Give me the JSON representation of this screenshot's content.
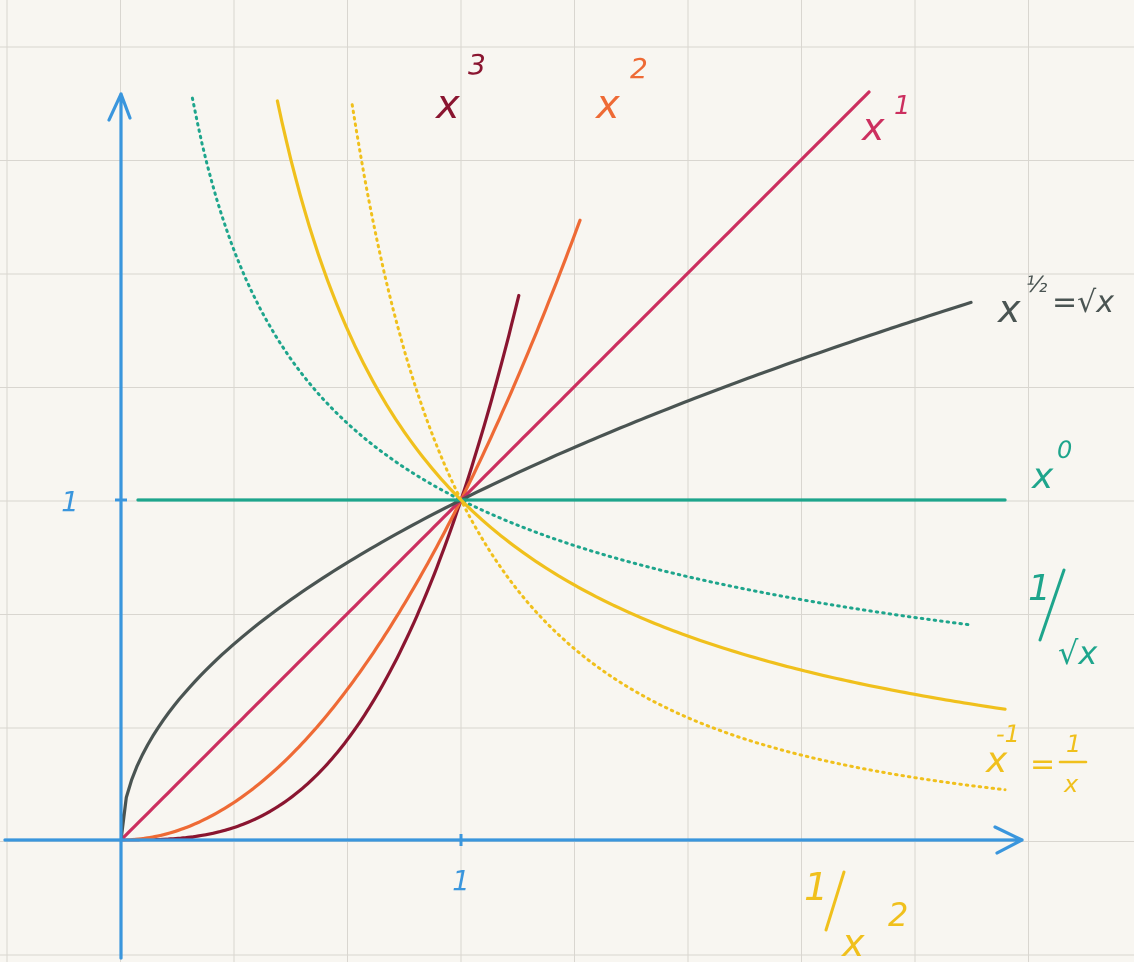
{
  "chart_data": {
    "type": "line",
    "title": "",
    "xlabel": "",
    "ylabel": "",
    "xlim": [
      0,
      2.65
    ],
    "ylim": [
      0,
      2.2
    ],
    "grid": true,
    "x_ticks": [
      {
        "value": 1,
        "label": "1"
      }
    ],
    "y_ticks": [
      {
        "value": 1,
        "label": "1"
      }
    ],
    "series": [
      {
        "id": "x3",
        "name": "x³",
        "label_parts": [
          "x",
          "3"
        ],
        "color": "#8a1530",
        "style": "solid",
        "exponent": 3,
        "x": [
          0,
          0.25,
          0.5,
          0.7,
          0.8,
          0.9,
          1.0,
          1.1,
          1.17
        ],
        "y": [
          0,
          0.016,
          0.125,
          0.343,
          0.512,
          0.729,
          1.0,
          1.331,
          1.6
        ]
      },
      {
        "id": "x2",
        "name": "x²",
        "label_parts": [
          "x",
          "2"
        ],
        "color": "#ee6a35",
        "style": "solid",
        "exponent": 2,
        "x": [
          0,
          0.25,
          0.5,
          0.75,
          1.0,
          1.2,
          1.35
        ],
        "y": [
          0,
          0.0625,
          0.25,
          0.5625,
          1.0,
          1.44,
          1.8
        ]
      },
      {
        "id": "x1",
        "name": "x¹",
        "label_parts": [
          "x",
          "1"
        ],
        "color": "#cc2f5f",
        "style": "solid",
        "exponent": 1,
        "x": [
          0,
          1.0,
          2.2
        ],
        "y": [
          0,
          1.0,
          2.2
        ]
      },
      {
        "id": "sqrt",
        "name": "x^½ = √x",
        "label_parts": [
          "x",
          "½",
          "=√x"
        ],
        "color": "#4a5452",
        "style": "solid",
        "exponent": 0.5,
        "x": [
          0,
          0.1,
          0.25,
          0.5,
          1.0,
          1.5,
          2.0,
          2.5
        ],
        "y": [
          0,
          0.316,
          0.5,
          0.707,
          1.0,
          1.225,
          1.414,
          1.581
        ]
      },
      {
        "id": "x0",
        "name": "x⁰",
        "label_parts": [
          "x",
          "0"
        ],
        "color": "#1ea58c",
        "style": "solid",
        "exponent": 0,
        "x": [
          0.05,
          2.6
        ],
        "y": [
          1,
          1
        ]
      },
      {
        "id": "invsqrt",
        "name": "1/√x",
        "label_parts": [
          "1",
          "√x"
        ],
        "color": "#1ea58c",
        "style": "dotted",
        "exponent": -0.5,
        "x": [
          0.21,
          0.3,
          0.5,
          0.75,
          1.0,
          1.5,
          2.0,
          2.5
        ],
        "y": [
          2.18,
          1.826,
          1.414,
          1.155,
          1.0,
          0.816,
          0.707,
          0.632
        ]
      },
      {
        "id": "inv",
        "name": "x⁻¹ = 1/x",
        "label_parts": [
          "x",
          "-1",
          "=",
          "1",
          "x"
        ],
        "color": "#f0c01c",
        "style": "solid",
        "exponent": -1,
        "x": [
          0.46,
          0.6,
          0.8,
          1.0,
          1.3,
          1.7,
          2.2,
          2.6
        ],
        "y": [
          2.17,
          1.667,
          1.25,
          1.0,
          0.769,
          0.588,
          0.455,
          0.385
        ]
      },
      {
        "id": "invsq",
        "name": "1/x²",
        "label_parts": [
          "1",
          "x",
          "2"
        ],
        "color": "#f0c01c",
        "style": "dotted",
        "exponent": -2,
        "x": [
          0.68,
          0.8,
          1.0,
          1.3,
          1.7,
          2.2,
          2.6
        ],
        "y": [
          2.16,
          1.5625,
          1.0,
          0.592,
          0.346,
          0.207,
          0.148
        ]
      }
    ],
    "axis_color": "#3a96dd",
    "grid_color": "#d9d6d0"
  }
}
